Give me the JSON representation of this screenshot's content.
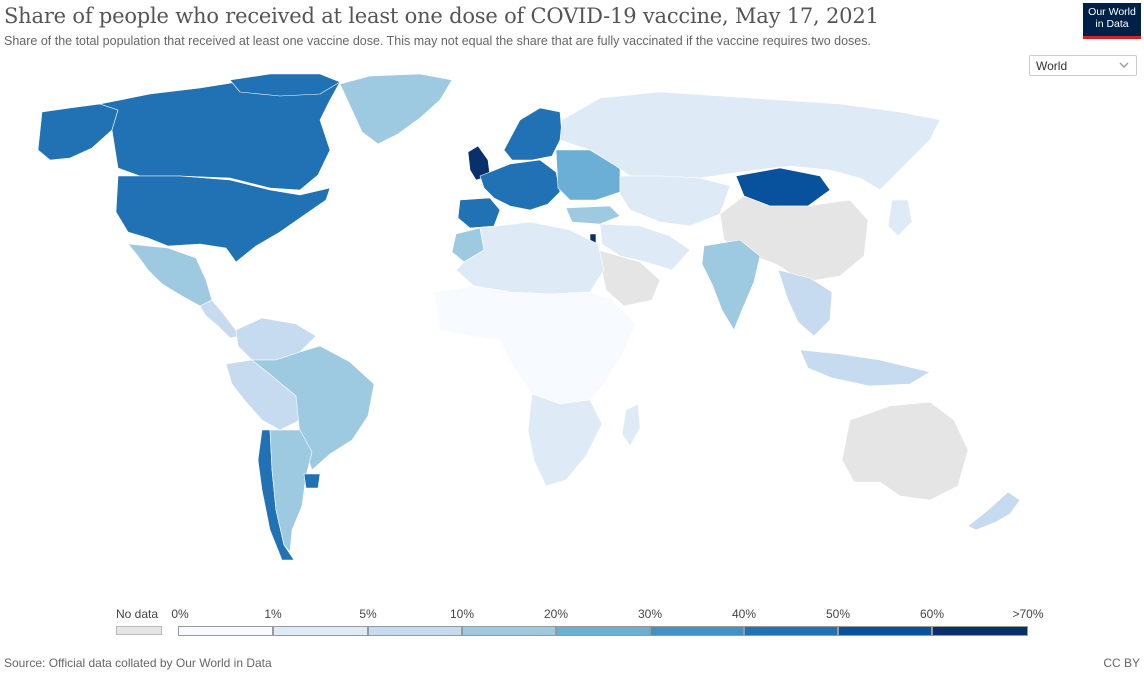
{
  "header": {
    "title": "Share of people who received at least one dose of COVID-19 vaccine, May 17, 2021",
    "subtitle": "Share of the total population that received at least one vaccine dose. This may not equal the share that are fully vaccinated if the vaccine requires two doses."
  },
  "logo": {
    "line1": "Our World",
    "line2": "in Data",
    "bg": "#002147",
    "bar": "#ce261e"
  },
  "region_select": {
    "value": "World",
    "icon": "chevron-down-icon"
  },
  "legend": {
    "no_data_label": "No data",
    "no_data_color": "#e5e5e5",
    "ticks": [
      "0%",
      "1%",
      "5%",
      "10%",
      "20%",
      "30%",
      "40%",
      "50%",
      "60%",
      ">70%"
    ],
    "colors": [
      "#f7fbff",
      "#deebf7",
      "#c6dbef",
      "#9ecae1",
      "#6baed6",
      "#4292c6",
      "#2171b5",
      "#08519c",
      "#08306b"
    ]
  },
  "map_regions": [
    {
      "name": "Canada / Greenland north",
      "bin": 6
    },
    {
      "name": "United States",
      "bin": 6
    },
    {
      "name": "Alaska",
      "bin": 6
    },
    {
      "name": "Greenland",
      "bin": 3
    },
    {
      "name": "Mexico",
      "bin": 3
    },
    {
      "name": "Central America",
      "bin": 2
    },
    {
      "name": "Colombia/Venezuela",
      "bin": 2
    },
    {
      "name": "Brazil",
      "bin": 3
    },
    {
      "name": "Peru/Bolivia",
      "bin": 2
    },
    {
      "name": "Argentina",
      "bin": 3
    },
    {
      "name": "Chile",
      "bin": 6
    },
    {
      "name": "Uruguay",
      "bin": 6
    },
    {
      "name": "Western Europe",
      "bin": 6
    },
    {
      "name": "United Kingdom",
      "bin": 8
    },
    {
      "name": "Iberia",
      "bin": 6
    },
    {
      "name": "Nordics",
      "bin": 6
    },
    {
      "name": "Eastern Europe",
      "bin": 4
    },
    {
      "name": "Russia",
      "bin": 1
    },
    {
      "name": "Kazakhstan / Central Asia",
      "bin": 1
    },
    {
      "name": "Mongolia",
      "bin": 7
    },
    {
      "name": "China",
      "bin": -1
    },
    {
      "name": "India",
      "bin": 3
    },
    {
      "name": "Middle East",
      "bin": 1
    },
    {
      "name": "Israel",
      "bin": 8
    },
    {
      "name": "Turkey",
      "bin": 3
    },
    {
      "name": "North Africa",
      "bin": 1
    },
    {
      "name": "Morocco",
      "bin": 3
    },
    {
      "name": "Sub-Saharan Africa",
      "bin": 0
    },
    {
      "name": "Southern Africa",
      "bin": 1
    },
    {
      "name": "Southeast Asia",
      "bin": 2
    },
    {
      "name": "Indonesia",
      "bin": 2
    },
    {
      "name": "Australia",
      "bin": -1
    },
    {
      "name": "New Zealand",
      "bin": 2
    },
    {
      "name": "Japan",
      "bin": 1
    },
    {
      "name": "Saudi Arabia/Iran",
      "bin": -1
    }
  ],
  "footer": {
    "source": "Source: Official data collated by Our World in Data",
    "license": "CC BY"
  }
}
